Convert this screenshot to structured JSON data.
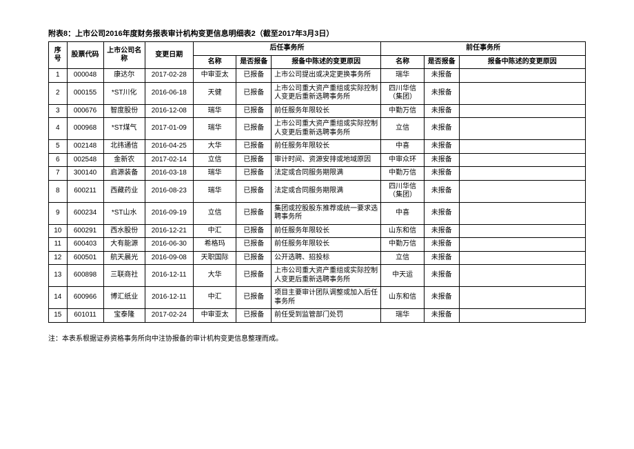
{
  "title": "附表8：上市公司2016年度财务报表审计机构变更信息明细表2（截至2017年3月3日）",
  "footnote": "注：本表系根据证券资格事务所向中注协报备的审计机构变更信息整理而成。",
  "headers": {
    "seq": "序号",
    "code": "股票代码",
    "company": "上市公司名称",
    "date": "变更日期",
    "succ_group": "后任事务所",
    "pred_group": "前任事务所",
    "name": "名称",
    "filed": "是否报备",
    "reason": "报备中陈述的变更原因"
  },
  "rows": [
    {
      "seq": "1",
      "code": "000048",
      "company": "康达尔",
      "date": "2017-02-28",
      "s_name": "中审亚太",
      "s_filed": "已报备",
      "s_reason": "上市公司提出或决定更换事务所",
      "p_name": "瑞华",
      "p_filed": "未报备",
      "p_reason": ""
    },
    {
      "seq": "2",
      "code": "000155",
      "company": "*ST川化",
      "date": "2016-06-18",
      "s_name": "天健",
      "s_filed": "已报备",
      "s_reason": "上市公司重大资产重组或实际控制人变更后重新选聘事务所",
      "p_name": "四川华信（集团）",
      "p_filed": "未报备",
      "p_reason": ""
    },
    {
      "seq": "3",
      "code": "000676",
      "company": "智度股份",
      "date": "2016-12-08",
      "s_name": "瑞华",
      "s_filed": "已报备",
      "s_reason": "前任服务年限较长",
      "p_name": "中勤万信",
      "p_filed": "未报备",
      "p_reason": ""
    },
    {
      "seq": "4",
      "code": "000968",
      "company": "*ST煤气",
      "date": "2017-01-09",
      "s_name": "瑞华",
      "s_filed": "已报备",
      "s_reason": "上市公司重大资产重组或实际控制人变更后重新选聘事务所",
      "p_name": "立信",
      "p_filed": "未报备",
      "p_reason": ""
    },
    {
      "seq": "5",
      "code": "002148",
      "company": "北纬通信",
      "date": "2016-04-25",
      "s_name": "大华",
      "s_filed": "已报备",
      "s_reason": "前任服务年限较长",
      "p_name": "中喜",
      "p_filed": "未报备",
      "p_reason": ""
    },
    {
      "seq": "6",
      "code": "002548",
      "company": "金新农",
      "date": "2017-02-14",
      "s_name": "立信",
      "s_filed": "已报备",
      "s_reason": "审计时间、资源安排或地域原因",
      "p_name": "中审众环",
      "p_filed": "未报备",
      "p_reason": ""
    },
    {
      "seq": "7",
      "code": "300140",
      "company": "启源装备",
      "date": "2016-03-18",
      "s_name": "瑞华",
      "s_filed": "已报备",
      "s_reason": "法定或合同服务期限满",
      "p_name": "中勤万信",
      "p_filed": "未报备",
      "p_reason": ""
    },
    {
      "seq": "8",
      "code": "600211",
      "company": "西藏药业",
      "date": "2016-08-23",
      "s_name": "瑞华",
      "s_filed": "已报备",
      "s_reason": "法定或合同服务期限满",
      "p_name": "四川华信（集团）",
      "p_filed": "未报备",
      "p_reason": ""
    },
    {
      "seq": "9",
      "code": "600234",
      "company": "*ST山水",
      "date": "2016-09-19",
      "s_name": "立信",
      "s_filed": "已报备",
      "s_reason": "集团或控股股东推荐或统一要求选聘事务所",
      "p_name": "中喜",
      "p_filed": "未报备",
      "p_reason": ""
    },
    {
      "seq": "10",
      "code": "600291",
      "company": "西水股份",
      "date": "2016-12-21",
      "s_name": "中汇",
      "s_filed": "已报备",
      "s_reason": "前任服务年限较长",
      "p_name": "山东和信",
      "p_filed": "未报备",
      "p_reason": ""
    },
    {
      "seq": "11",
      "code": "600403",
      "company": "大有能源",
      "date": "2016-06-30",
      "s_name": "希格玛",
      "s_filed": "已报备",
      "s_reason": "前任服务年限较长",
      "p_name": "中勤万信",
      "p_filed": "未报备",
      "p_reason": ""
    },
    {
      "seq": "12",
      "code": "600501",
      "company": "航天晨光",
      "date": "2016-09-08",
      "s_name": "天职国际",
      "s_filed": "已报备",
      "s_reason": "公开选聘、招投标",
      "p_name": "立信",
      "p_filed": "未报备",
      "p_reason": ""
    },
    {
      "seq": "13",
      "code": "600898",
      "company": "三联商社",
      "date": "2016-12-11",
      "s_name": "大华",
      "s_filed": "已报备",
      "s_reason": "上市公司重大资产重组或实际控制人变更后重新选聘事务所",
      "p_name": "中天运",
      "p_filed": "未报备",
      "p_reason": ""
    },
    {
      "seq": "14",
      "code": "600966",
      "company": "博汇纸业",
      "date": "2016-12-11",
      "s_name": "中汇",
      "s_filed": "已报备",
      "s_reason": "项目主要审计团队调整或加入后任事务所",
      "p_name": "山东和信",
      "p_filed": "未报备",
      "p_reason": ""
    },
    {
      "seq": "15",
      "code": "601011",
      "company": "宝泰隆",
      "date": "2017-02-24",
      "s_name": "中审亚太",
      "s_filed": "已报备",
      "s_reason": "前任受到监管部门处罚",
      "p_name": "瑞华",
      "p_filed": "未报备",
      "p_reason": ""
    }
  ]
}
